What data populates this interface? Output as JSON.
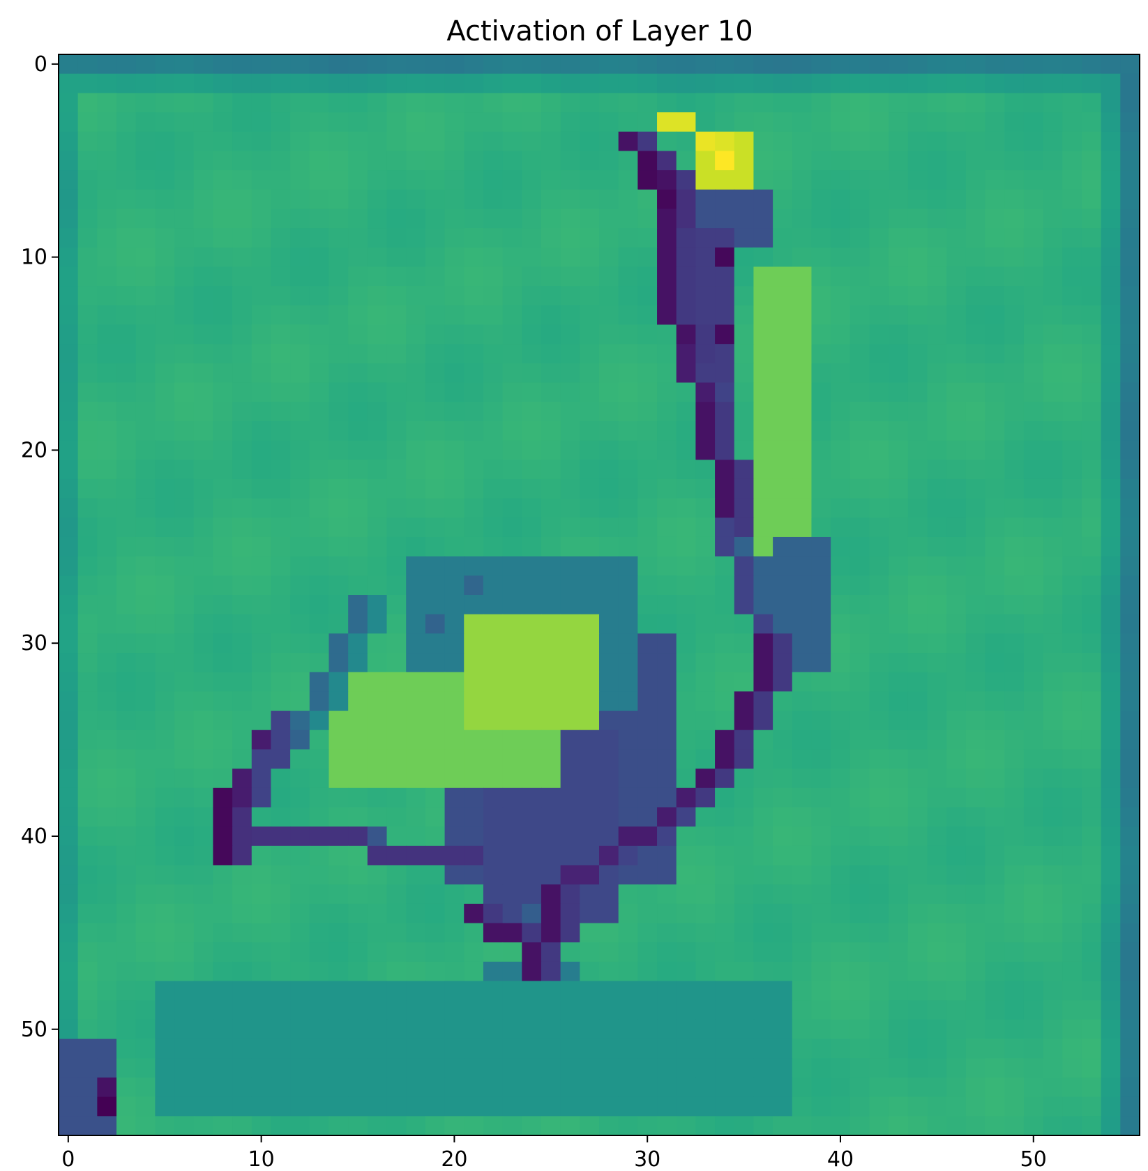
{
  "chart_data": {
    "type": "heatmap",
    "title": "Activation of Layer 10",
    "xlabel": "",
    "ylabel": "",
    "rows": 56,
    "cols": 56,
    "x_range": [
      -0.5,
      55.5
    ],
    "y_range": [
      -0.5,
      55.5
    ],
    "y_inverted": true,
    "colormap": "viridis",
    "grid": false,
    "x_ticks": [
      0,
      10,
      20,
      30,
      40,
      50
    ],
    "y_ticks": [
      0,
      10,
      20,
      30,
      40,
      50
    ],
    "background_level": 0.64,
    "border_level": 0.42,
    "notes_scale": "normalized activation 0-1 (no colorbar shown)",
    "segments": [
      {
        "r0": 3,
        "c0": 31,
        "r1": 4,
        "c1": 34,
        "v": 0.95
      },
      {
        "r0": 4,
        "c0": 29,
        "r1": 6,
        "c1": 31,
        "v": 0.05
      },
      {
        "r0": 5,
        "c0": 30,
        "r1": 8,
        "c1": 31,
        "v": 0.02
      },
      {
        "r0": 8,
        "c0": 31,
        "r1": 12,
        "c1": 31,
        "v": 0.05
      },
      {
        "r0": 12,
        "c0": 31,
        "r1": 15,
        "c1": 32,
        "v": 0.05
      },
      {
        "r0": 15,
        "c0": 32,
        "r1": 18,
        "c1": 33,
        "v": 0.08
      },
      {
        "r0": 18,
        "c0": 33,
        "r1": 24,
        "c1": 34,
        "v": 0.05
      },
      {
        "r0": 24,
        "c0": 34,
        "r1": 30,
        "c1": 36,
        "v": 0.2
      },
      {
        "r0": 30,
        "c0": 36,
        "r1": 34,
        "c1": 35,
        "v": 0.05
      },
      {
        "r0": 34,
        "c0": 35,
        "r1": 38,
        "c1": 32,
        "v": 0.05
      },
      {
        "r0": 38,
        "c0": 32,
        "r1": 41,
        "c1": 28,
        "v": 0.08
      },
      {
        "r0": 41,
        "c0": 28,
        "r1": 43,
        "c1": 25,
        "v": 0.1
      },
      {
        "r0": 43,
        "c0": 25,
        "r1": 47,
        "c1": 24,
        "v": 0.05
      },
      {
        "r0": 44,
        "c0": 21,
        "r1": 46,
        "c1": 24,
        "v": 0.05
      },
      {
        "r0": 40,
        "c0": 10,
        "r1": 41,
        "c1": 21,
        "v": 0.15
      },
      {
        "r0": 35,
        "c0": 10,
        "r1": 40,
        "c1": 8,
        "v": 0.08
      },
      {
        "r0": 38,
        "c0": 8,
        "r1": 41,
        "c1": 8,
        "v": 0.02
      },
      {
        "r0": 34,
        "c0": 11,
        "r1": 36,
        "c1": 10,
        "v": 0.2
      },
      {
        "r0": 28,
        "c0": 15,
        "r1": 34,
        "c1": 12,
        "v": 0.35
      }
    ],
    "blobs": [
      {
        "r0": 30,
        "c0": 20,
        "r1": 42,
        "c1": 31,
        "v": 0.24
      },
      {
        "r0": 35,
        "c0": 22,
        "r1": 44,
        "c1": 28,
        "v": 0.22
      },
      {
        "r0": 26,
        "c0": 18,
        "r1": 33,
        "c1": 29,
        "v": 0.42
      },
      {
        "r0": 32,
        "c0": 14,
        "r1": 37,
        "c1": 25,
        "v": 0.78
      },
      {
        "r0": 29,
        "c0": 21,
        "r1": 34,
        "c1": 27,
        "v": 0.84
      },
      {
        "r0": 7,
        "c0": 32,
        "r1": 9,
        "c1": 36,
        "v": 0.25
      },
      {
        "r0": 9,
        "c0": 32,
        "r1": 16,
        "c1": 34,
        "v": 0.18
      },
      {
        "r0": 44,
        "c0": 24,
        "r1": 52,
        "c1": 25,
        "v": 0.3
      },
      {
        "r0": 47,
        "c0": 22,
        "r1": 53,
        "c1": 26,
        "v": 0.42
      },
      {
        "r0": 50,
        "c0": 29,
        "r1": 53,
        "c1": 30,
        "v": 0.35
      },
      {
        "r0": 51,
        "c0": 0,
        "r1": 55,
        "c1": 2,
        "v": 0.25
      },
      {
        "r0": 48,
        "c0": 5,
        "r1": 54,
        "c1": 37,
        "v": 0.52
      },
      {
        "r0": 11,
        "c0": 36,
        "r1": 26,
        "c1": 38,
        "v": 0.78
      },
      {
        "r0": 25,
        "c0": 37,
        "r1": 31,
        "c1": 39,
        "v": 0.32
      },
      {
        "r0": 4,
        "c0": 33,
        "r1": 6,
        "c1": 35,
        "v": 0.92
      }
    ],
    "points": [
      {
        "r": 5,
        "c": 34,
        "v": 1.0
      },
      {
        "r": 4,
        "c": 33,
        "v": 0.97
      },
      {
        "r": 10,
        "c": 34,
        "v": 0.02
      },
      {
        "r": 14,
        "c": 34,
        "v": 0.03
      },
      {
        "r": 54,
        "c": 2,
        "v": 0.0
      },
      {
        "r": 53,
        "c": 2,
        "v": 0.05
      },
      {
        "r": 29,
        "c": 19,
        "v": 0.32
      },
      {
        "r": 27,
        "c": 21,
        "v": 0.33
      }
    ]
  }
}
